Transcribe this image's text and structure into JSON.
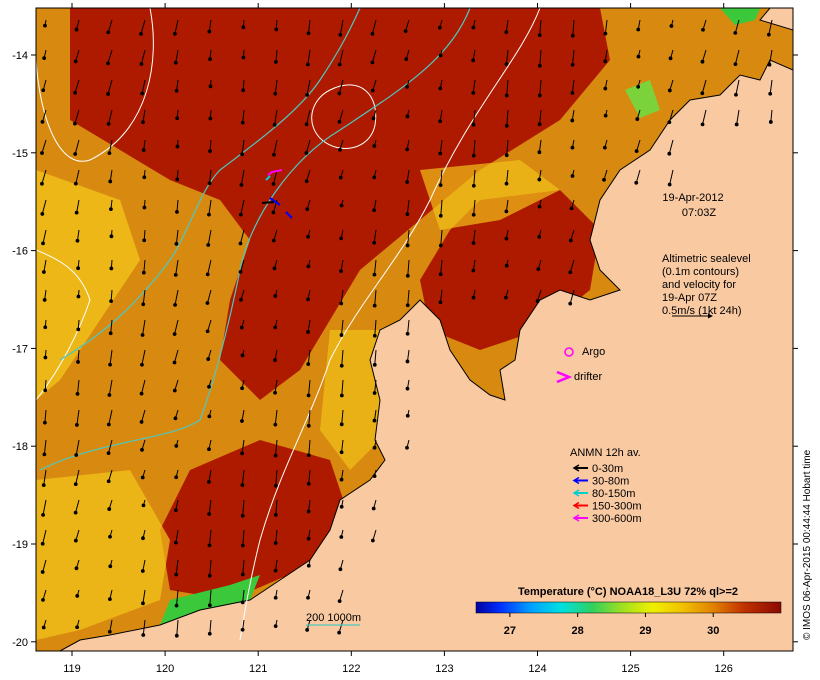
{
  "map": {
    "date": "19-Apr-2012",
    "time": "07:03Z",
    "altimetry_lines": [
      "Altimetric sealevel",
      "(0.1m contours)",
      "and velocity for",
      "19-Apr 07Z",
      "0.5m/s (1kt 24h)"
    ],
    "argo_label": "Argo",
    "drifter_label": "drifter",
    "depth_scale_label": "200  1000m",
    "credit": "© IMOS 06-Apr-2015 00:44:44 Hobart time"
  },
  "legend": {
    "title": "ANMN 12h av.",
    "items": [
      {
        "label": "0-30m",
        "color": "#000000"
      },
      {
        "label": "30-80m",
        "color": "#0000ff"
      },
      {
        "label": "80-150m",
        "color": "#00cfcf"
      },
      {
        "label": "150-300m",
        "color": "#ff0000"
      },
      {
        "label": "300-600m",
        "color": "#ff00ff"
      }
    ]
  },
  "colorbar": {
    "title": "Temperature (°C) NOAA18_L3U 72% ql>=2",
    "ticks": [
      "27",
      "28",
      "29",
      "30"
    ],
    "min": 26.5,
    "max": 31.0
  },
  "axes": {
    "lon_ticks": [
      "119",
      "120",
      "121",
      "122",
      "123",
      "124",
      "125",
      "126"
    ],
    "lat_ticks": [
      "-14",
      "-15",
      "-16",
      "-17",
      "-18",
      "-19",
      "-20"
    ]
  },
  "colors": {
    "land": "#f9c9a2",
    "warm_sst": "#ae1a00",
    "mid_sst": "#d88a10",
    "cool_sst": "#f2c21a",
    "isobath": "#4fc7c0"
  }
}
